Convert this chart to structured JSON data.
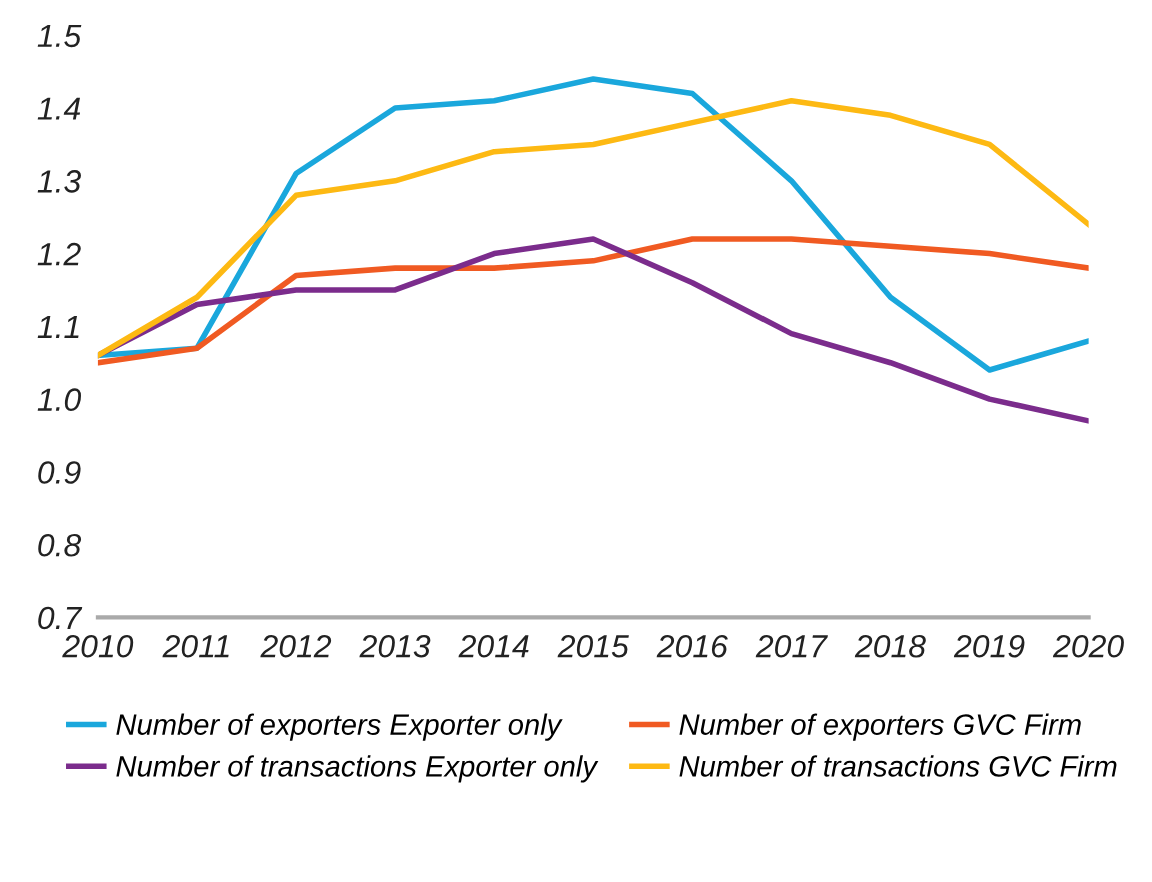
{
  "chart_data": {
    "type": "line",
    "x": [
      2010,
      2011,
      2012,
      2013,
      2014,
      2015,
      2016,
      2017,
      2018,
      2019,
      2020
    ],
    "series": [
      {
        "name": "Number of exporters Exporter only",
        "color": "#1aa7dc",
        "values": [
          1.06,
          1.07,
          1.31,
          1.4,
          1.41,
          1.44,
          1.42,
          1.3,
          1.14,
          1.04,
          1.08
        ]
      },
      {
        "name": "Number of exporters GVC Firm",
        "color": "#f05a22",
        "values": [
          1.05,
          1.07,
          1.17,
          1.18,
          1.18,
          1.19,
          1.22,
          1.22,
          1.21,
          1.2,
          1.18
        ]
      },
      {
        "name": "Number of transactions Exporter only",
        "color": "#7b2c8c",
        "values": [
          1.06,
          1.13,
          1.15,
          1.15,
          1.2,
          1.22,
          1.16,
          1.09,
          1.05,
          1.0,
          0.97
        ]
      },
      {
        "name": "Number of transactions GVC Firm",
        "color": "#fdb913",
        "values": [
          1.06,
          1.14,
          1.28,
          1.3,
          1.34,
          1.35,
          1.38,
          1.41,
          1.39,
          1.35,
          1.24
        ]
      }
    ],
    "xlim": [
      2010,
      2020
    ],
    "xticks": [
      2010,
      2011,
      2012,
      2013,
      2014,
      2015,
      2016,
      2017,
      2018,
      2019,
      2020
    ],
    "ylim": [
      0.7,
      1.5
    ],
    "yticks": [
      {
        "value": 0.7,
        "label": "0.7"
      },
      {
        "value": 0.8,
        "label": "0.8"
      },
      {
        "value": 0.9,
        "label": "0.9"
      },
      {
        "value": 1.0,
        "label": "1.0"
      },
      {
        "value": 1.1,
        "label": "1.1"
      },
      {
        "value": 1.2,
        "label": "1.2"
      },
      {
        "value": 1.3,
        "label": "1.3"
      },
      {
        "value": 1.4,
        "label": "1.4"
      },
      {
        "value": 1.5,
        "label": "1.5"
      }
    ],
    "grid": false,
    "legend": "bottom",
    "marker": "none",
    "line_style": "solid"
  }
}
